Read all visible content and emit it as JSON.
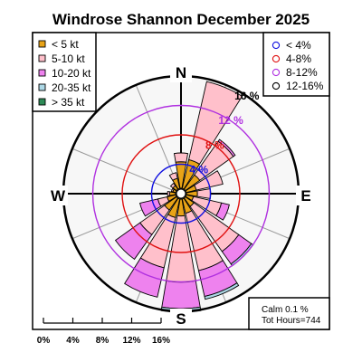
{
  "title": "Windrose  Shannon December 2025",
  "compass": {
    "n": "N",
    "e": "E",
    "s": "S",
    "w": "W"
  },
  "speed_legend": [
    {
      "label": "< 5  kt",
      "color": "#e8a317"
    },
    {
      "label": "5-10 kt",
      "color": "#ffc0cb"
    },
    {
      "label": "10-20 kt",
      "color": "#ee82ee"
    },
    {
      "label": "20-35 kt",
      "color": "#add8e6"
    },
    {
      "label": "> 35 kt",
      "color": "#2e8b57"
    }
  ],
  "ring_legend": [
    {
      "label": "< 4%",
      "color": "#1010e0"
    },
    {
      "label": "4-8%",
      "color": "#e01010"
    },
    {
      "label": "8-12%",
      "color": "#b030e0"
    },
    {
      "label": "12-16%",
      "color": "#000000"
    }
  ],
  "ring_labels": [
    "4 %",
    "8 %",
    "12 %",
    "16 %"
  ],
  "calm": "Calm 0.1 %",
  "hours": "Tot Hours=744",
  "scale": {
    "ticks": [
      "0%",
      "4%",
      "8%",
      "12%",
      "16%"
    ]
  },
  "chart_data": {
    "type": "windrose",
    "title": "Windrose  Shannon December 2025",
    "unit": "%",
    "max_percent": 16,
    "rings": [
      4,
      8,
      12,
      16
    ],
    "directions_deg": [
      0,
      22.5,
      45,
      67.5,
      90,
      112.5,
      135,
      157.5,
      180,
      202.5,
      225,
      247.5,
      270,
      292.5,
      315,
      337.5
    ],
    "series": [
      {
        "name": "< 5  kt",
        "values": [
          3.6,
          4.0,
          2.4,
          1.4,
          1.5,
          1.0,
          1.4,
          2.0,
          2.3,
          2.6,
          2.0,
          1.2,
          0.8,
          0.4,
          0.6,
          1.4
        ]
      },
      {
        "name": "5-10 kt",
        "values": [
          1.2,
          10.9,
          5.6,
          3.7,
          1.8,
          3.9,
          7.5,
          8.0,
          9.0,
          7.0,
          4.1,
          1.3,
          0.3,
          0.2,
          0.4,
          0.8
        ]
      },
      {
        "name": "10-20 kt",
        "values": [
          0.0,
          0.0,
          0.3,
          0.0,
          0.0,
          1.1,
          2.1,
          3.6,
          3.6,
          4.1,
          4.1,
          2.5,
          0.0,
          0.0,
          0.0,
          0.0
        ]
      },
      {
        "name": "20-35 kt",
        "values": [
          0.0,
          0.0,
          0.0,
          0.0,
          0.0,
          0.0,
          0.3,
          0.4,
          0.5,
          0.0,
          0.0,
          0.0,
          0.0,
          0.0,
          0.0,
          0.0
        ]
      },
      {
        "name": "> 35 kt",
        "values": [
          0,
          0,
          0,
          0,
          0,
          0,
          0,
          0,
          0,
          0,
          0,
          0,
          0,
          0,
          0,
          0
        ]
      }
    ]
  }
}
